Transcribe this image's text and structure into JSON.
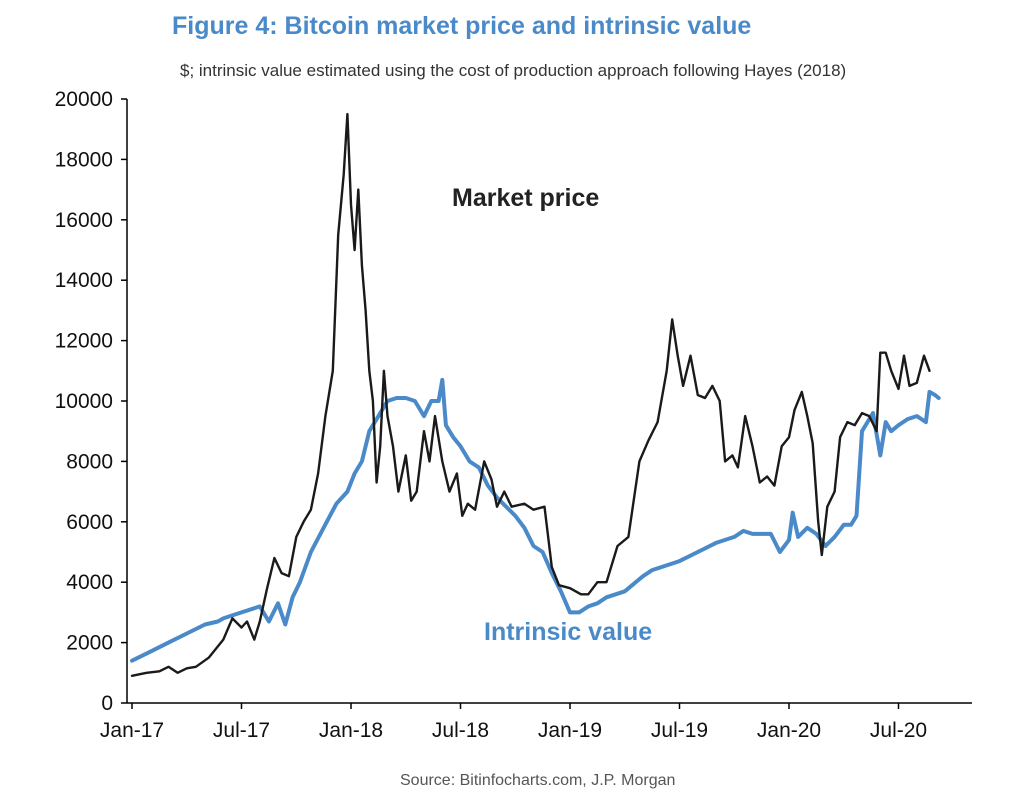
{
  "chart_data": {
    "type": "line",
    "title": "Figure 4: Bitcoin market price and intrinsic value",
    "subtitle": "$; intrinsic value estimated using the cost of production approach following Hayes (2018)",
    "source": "Source: Bitinfocharts.com, J.P. Morgan",
    "xlabel": "",
    "ylabel": "",
    "xlim": [
      0,
      46.5
    ],
    "ylim": [
      0,
      20000
    ],
    "grid": false,
    "y_ticks": [
      0,
      2000,
      4000,
      6000,
      8000,
      10000,
      12000,
      14000,
      16000,
      18000,
      20000
    ],
    "x_ticks": [
      {
        "label": "Jan-17",
        "month": 0
      },
      {
        "label": "Jul-17",
        "month": 6
      },
      {
        "label": "Jan-18",
        "month": 12
      },
      {
        "label": "Jul-18",
        "month": 18
      },
      {
        "label": "Jan-19",
        "month": 24
      },
      {
        "label": "Jul-19",
        "month": 30
      },
      {
        "label": "Jan-20",
        "month": 36
      },
      {
        "label": "Jul-20",
        "month": 42
      }
    ],
    "annotations": [
      {
        "text": "Market price",
        "series": "Market price"
      },
      {
        "text": "Intrinsic value",
        "series": "Intrinsic value"
      }
    ],
    "series": [
      {
        "name": "Market price",
        "color": "#1a1a1a",
        "points": [
          [
            0,
            900
          ],
          [
            0.8,
            1000
          ],
          [
            1.5,
            1050
          ],
          [
            2,
            1200
          ],
          [
            2.5,
            1000
          ],
          [
            3,
            1150
          ],
          [
            3.5,
            1200
          ],
          [
            4.2,
            1500
          ],
          [
            5,
            2100
          ],
          [
            5.5,
            2800
          ],
          [
            6,
            2500
          ],
          [
            6.3,
            2700
          ],
          [
            6.7,
            2100
          ],
          [
            7,
            2700
          ],
          [
            7.4,
            3800
          ],
          [
            7.8,
            4800
          ],
          [
            8.2,
            4300
          ],
          [
            8.6,
            4200
          ],
          [
            9,
            5500
          ],
          [
            9.4,
            6000
          ],
          [
            9.8,
            6400
          ],
          [
            10.2,
            7600
          ],
          [
            10.6,
            9500
          ],
          [
            11,
            11000
          ],
          [
            11.3,
            15500
          ],
          [
            11.6,
            17500
          ],
          [
            11.8,
            19500
          ],
          [
            12,
            16500
          ],
          [
            12.2,
            15000
          ],
          [
            12.4,
            17000
          ],
          [
            12.6,
            14500
          ],
          [
            12.8,
            13000
          ],
          [
            13,
            11000
          ],
          [
            13.2,
            10000
          ],
          [
            13.4,
            7300
          ],
          [
            13.6,
            8500
          ],
          [
            13.8,
            11000
          ],
          [
            14,
            9500
          ],
          [
            14.3,
            8500
          ],
          [
            14.6,
            7000
          ],
          [
            15,
            8200
          ],
          [
            15.3,
            6700
          ],
          [
            15.6,
            7000
          ],
          [
            16,
            9000
          ],
          [
            16.3,
            8000
          ],
          [
            16.6,
            9500
          ],
          [
            17,
            8000
          ],
          [
            17.4,
            7000
          ],
          [
            17.8,
            7600
          ],
          [
            18.1,
            6200
          ],
          [
            18.4,
            6600
          ],
          [
            18.8,
            6400
          ],
          [
            19.3,
            8000
          ],
          [
            19.7,
            7400
          ],
          [
            20,
            6500
          ],
          [
            20.4,
            7000
          ],
          [
            20.8,
            6500
          ],
          [
            21.5,
            6600
          ],
          [
            22,
            6400
          ],
          [
            22.6,
            6500
          ],
          [
            23,
            4500
          ],
          [
            23.4,
            3900
          ],
          [
            24,
            3800
          ],
          [
            24.6,
            3600
          ],
          [
            25,
            3600
          ],
          [
            25.5,
            4000
          ],
          [
            26,
            4000
          ],
          [
            26.6,
            5200
          ],
          [
            27.2,
            5500
          ],
          [
            27.8,
            8000
          ],
          [
            28.3,
            8700
          ],
          [
            28.8,
            9300
          ],
          [
            29.3,
            11000
          ],
          [
            29.6,
            12700
          ],
          [
            29.9,
            11500
          ],
          [
            30.2,
            10500
          ],
          [
            30.6,
            11500
          ],
          [
            31,
            10200
          ],
          [
            31.4,
            10100
          ],
          [
            31.8,
            10500
          ],
          [
            32.2,
            10000
          ],
          [
            32.5,
            8000
          ],
          [
            32.9,
            8200
          ],
          [
            33.2,
            7800
          ],
          [
            33.6,
            9500
          ],
          [
            34,
            8500
          ],
          [
            34.4,
            7300
          ],
          [
            34.8,
            7500
          ],
          [
            35.2,
            7200
          ],
          [
            35.6,
            8500
          ],
          [
            36,
            8800
          ],
          [
            36.3,
            9700
          ],
          [
            36.7,
            10300
          ],
          [
            37,
            9500
          ],
          [
            37.3,
            8600
          ],
          [
            37.6,
            6000
          ],
          [
            37.8,
            4900
          ],
          [
            38.1,
            6500
          ],
          [
            38.5,
            7000
          ],
          [
            38.8,
            8800
          ],
          [
            39.2,
            9300
          ],
          [
            39.6,
            9200
          ],
          [
            40,
            9600
          ],
          [
            40.4,
            9500
          ],
          [
            40.8,
            9000
          ],
          [
            41,
            11600
          ],
          [
            41.3,
            11600
          ],
          [
            41.6,
            11000
          ],
          [
            42,
            10400
          ],
          [
            42.3,
            11500
          ],
          [
            42.6,
            10500
          ],
          [
            43,
            10600
          ],
          [
            43.4,
            11500
          ],
          [
            43.7,
            11000
          ]
        ]
      },
      {
        "name": "Intrinsic value",
        "color": "#4a8ac8",
        "points": [
          [
            0,
            1400
          ],
          [
            1,
            1700
          ],
          [
            2,
            2000
          ],
          [
            3,
            2300
          ],
          [
            4,
            2600
          ],
          [
            4.7,
            2700
          ],
          [
            5,
            2800
          ],
          [
            6,
            3000
          ],
          [
            7,
            3200
          ],
          [
            7.5,
            2700
          ],
          [
            8,
            3300
          ],
          [
            8.4,
            2600
          ],
          [
            8.8,
            3500
          ],
          [
            9.2,
            4000
          ],
          [
            9.8,
            5000
          ],
          [
            10.5,
            5800
          ],
          [
            11.2,
            6600
          ],
          [
            11.8,
            7000
          ],
          [
            12.2,
            7600
          ],
          [
            12.6,
            8000
          ],
          [
            13,
            9000
          ],
          [
            13.5,
            9500
          ],
          [
            14,
            10000
          ],
          [
            14.5,
            10100
          ],
          [
            15,
            10100
          ],
          [
            15.5,
            10000
          ],
          [
            16,
            9500
          ],
          [
            16.4,
            10000
          ],
          [
            16.8,
            10000
          ],
          [
            17,
            10700
          ],
          [
            17.2,
            9200
          ],
          [
            17.6,
            8800
          ],
          [
            18,
            8500
          ],
          [
            18.5,
            8000
          ],
          [
            19,
            7800
          ],
          [
            19.5,
            7200
          ],
          [
            20,
            6800
          ],
          [
            20.5,
            6500
          ],
          [
            21,
            6200
          ],
          [
            21.5,
            5800
          ],
          [
            22,
            5200
          ],
          [
            22.5,
            5000
          ],
          [
            23,
            4300
          ],
          [
            23.5,
            3700
          ],
          [
            24,
            3000
          ],
          [
            24.5,
            3000
          ],
          [
            25,
            3200
          ],
          [
            25.5,
            3300
          ],
          [
            26,
            3500
          ],
          [
            27,
            3700
          ],
          [
            28,
            4200
          ],
          [
            28.5,
            4400
          ],
          [
            29,
            4500
          ],
          [
            30,
            4700
          ],
          [
            31,
            5000
          ],
          [
            32,
            5300
          ],
          [
            33,
            5500
          ],
          [
            33.5,
            5700
          ],
          [
            34,
            5600
          ],
          [
            35,
            5600
          ],
          [
            35.5,
            5000
          ],
          [
            36,
            5400
          ],
          [
            36.2,
            6300
          ],
          [
            36.5,
            5500
          ],
          [
            37,
            5800
          ],
          [
            37.5,
            5600
          ],
          [
            38,
            5200
          ],
          [
            38.5,
            5500
          ],
          [
            39,
            5900
          ],
          [
            39.4,
            5900
          ],
          [
            39.7,
            6200
          ],
          [
            40,
            9000
          ],
          [
            40.3,
            9300
          ],
          [
            40.6,
            9600
          ],
          [
            41,
            8200
          ],
          [
            41.3,
            9300
          ],
          [
            41.6,
            9000
          ],
          [
            42,
            9200
          ],
          [
            42.5,
            9400
          ],
          [
            43,
            9500
          ],
          [
            43.5,
            9300
          ],
          [
            43.7,
            10300
          ],
          [
            44,
            10200
          ],
          [
            44.2,
            10100
          ]
        ]
      }
    ]
  }
}
